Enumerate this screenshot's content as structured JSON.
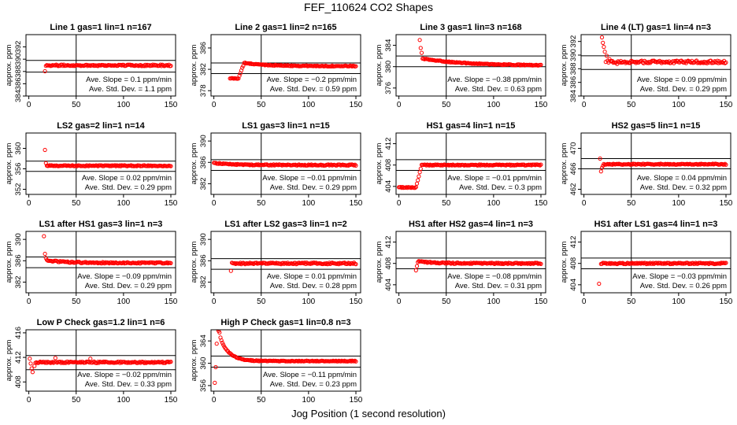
{
  "page": {
    "title": "FEF_110624  CO2 Shapes",
    "xlabel": "Jog Position (1 second resolution)"
  },
  "chart_data": [
    {
      "type": "scatter",
      "title": "Line 1 gas=1 lin=1 n=167",
      "ylabel": "approx. ppm",
      "xlim": [
        -3,
        155
      ],
      "ylim": [
        384,
        394
      ],
      "yticks": [
        384,
        386,
        388,
        390,
        392
      ],
      "xticks": [
        0,
        50,
        100,
        150
      ],
      "hlines": [
        389.8,
        387.9
      ],
      "vline": 50,
      "color": "#ff0000",
      "grid": false,
      "annotations": [
        "Ave. Slope =  0.1  ppm/min",
        "Ave. Std. Dev. =  1.1  ppm"
      ],
      "profile": {
        "start": 17,
        "initial": 383.5,
        "rise_to": 18,
        "level": 389.0,
        "overshoot": 0,
        "decay": 2,
        "noise": 0.12,
        "outliers": []
      }
    },
    {
      "type": "scatter",
      "title": "Line 2 gas=1 lin=2 n=165",
      "ylabel": "approx. ppm",
      "xlim": [
        -3,
        155
      ],
      "ylim": [
        377,
        388.5
      ],
      "yticks": [
        378,
        382,
        386
      ],
      "xticks": [
        0,
        50,
        100,
        150
      ],
      "hlines": [
        383.2,
        381.2
      ],
      "vline": 50,
      "color": "#ff0000",
      "grid": false,
      "annotations": [
        "Ave. Slope =  −0.2  ppm/min",
        "Ave. Std. Dev. =  0.59  ppm"
      ],
      "profile": {
        "start": 17,
        "initial": 380.3,
        "rise_to": 32,
        "level": 382.6,
        "overshoot": 0.6,
        "decay": 25,
        "noise": 0.08,
        "outliers": []
      }
    },
    {
      "type": "scatter",
      "title": "Line 3 gas=1 lin=3 n=168",
      "ylabel": "approx. ppm",
      "xlim": [
        -3,
        155
      ],
      "ylim": [
        374.5,
        386
      ],
      "yticks": [
        376,
        380,
        384
      ],
      "xticks": [
        0,
        50,
        100,
        150
      ],
      "hlines": [
        382.0,
        380.0
      ],
      "vline": 50,
      "color": "#ff0000",
      "grid": false,
      "annotations": [
        "Ave. Slope =  −0.38  ppm/min",
        "Ave. Std. Dev. =  0.63  ppm"
      ],
      "profile": {
        "start": 22,
        "initial": null,
        "rise_to": 22,
        "level": 380.2,
        "overshoot": 1.4,
        "decay": 45,
        "noise": 0.08,
        "outliers": [
          [
            22,
            385.0
          ],
          [
            23,
            383.5
          ],
          [
            24,
            382.6
          ]
        ]
      }
    },
    {
      "type": "scatter",
      "title": "Line 4 (LT) gas=1 lin=4 n=3",
      "ylabel": "approx. ppm",
      "xlim": [
        -3,
        155
      ],
      "ylim": [
        384,
        393
      ],
      "yticks": [
        384,
        386,
        388,
        390,
        392
      ],
      "xticks": [
        0,
        50,
        100,
        150
      ],
      "hlines": [
        389.9,
        387.9
      ],
      "vline": 50,
      "color": "#ff0000",
      "grid": false,
      "annotations": [
        "Ave. Slope =  0.09  ppm/min",
        "Ave. Std. Dev. =  0.29  ppm"
      ],
      "profile": {
        "start": 19,
        "initial": null,
        "rise_to": 19,
        "level": 389.0,
        "overshoot": 0,
        "decay": 2,
        "noise": 0.2,
        "outliers": [
          [
            19,
            392.6
          ],
          [
            20,
            391.8
          ],
          [
            21,
            391.2
          ],
          [
            22,
            390.5
          ],
          [
            24,
            389.9
          ],
          [
            27,
            389.4
          ],
          [
            35,
            388.7
          ],
          [
            40,
            388.9
          ]
        ]
      }
    },
    {
      "type": "scatter",
      "title": "LS2 gas=2 lin=1 n=14",
      "ylabel": "approx. ppm",
      "xlim": [
        -3,
        155
      ],
      "ylim": [
        351,
        363
      ],
      "yticks": [
        352,
        356,
        360
      ],
      "xticks": [
        0,
        50,
        100,
        150
      ],
      "hlines": [
        357.5,
        355.5
      ],
      "vline": 50,
      "color": "#ff0000",
      "grid": false,
      "annotations": [
        "Ave. Slope =  0.02  ppm/min",
        "Ave. Std. Dev. =  0.29  ppm"
      ],
      "profile": {
        "start": 18,
        "initial": null,
        "rise_to": 18,
        "level": 356.6,
        "overshoot": 0,
        "decay": 2,
        "noise": 0.1,
        "outliers": [
          [
            17,
            359.7
          ],
          [
            18,
            357.1
          ]
        ]
      }
    },
    {
      "type": "scatter",
      "title": "LS1 gas=3 lin=1 n=15",
      "ylabel": "approx. ppm",
      "xlim": [
        -3,
        155
      ],
      "ylim": [
        380,
        391.5
      ],
      "yticks": [
        382,
        386,
        390
      ],
      "xticks": [
        0,
        50,
        100,
        150
      ],
      "hlines": [
        386.5,
        384.5
      ],
      "vline": 50,
      "color": "#ff0000",
      "grid": false,
      "annotations": [
        "Ave. Slope =  −0.01  ppm/min",
        "Ave. Std. Dev. =  0.29  ppm"
      ],
      "profile": {
        "start": 0,
        "initial": null,
        "rise_to": 0,
        "level": 385.5,
        "overshoot": 0.4,
        "decay": 20,
        "noise": 0.1,
        "outliers": []
      }
    },
    {
      "type": "scatter",
      "title": "HS1 gas=4 lin=1 n=15",
      "ylabel": "approx. ppm",
      "xlim": [
        -3,
        155
      ],
      "ylim": [
        402.5,
        414
      ],
      "yticks": [
        404,
        408,
        412
      ],
      "xticks": [
        0,
        50,
        100,
        150
      ],
      "hlines": [
        409.0,
        407.0
      ],
      "vline": 50,
      "color": "#ff0000",
      "grid": false,
      "annotations": [
        "Ave. Slope =  −0.01  ppm/min",
        "Ave. Std. Dev. =  0.3  ppm"
      ],
      "profile": {
        "start": 0,
        "initial": 403.8,
        "rise_to": 24,
        "level": 408.0,
        "overshoot": 0,
        "decay": 2,
        "noise": 0.1,
        "outliers": []
      }
    },
    {
      "type": "scatter",
      "title": "HS2 gas=5 lin=1 n=15",
      "ylabel": "approx. ppm",
      "xlim": [
        -3,
        155
      ],
      "ylim": [
        461,
        473
      ],
      "yticks": [
        462,
        466,
        470
      ],
      "xticks": [
        0,
        50,
        100,
        150
      ],
      "hlines": [
        468.0,
        466.0
      ],
      "vline": 50,
      "color": "#ff0000",
      "grid": false,
      "annotations": [
        "Ave. Slope =  0.04  ppm/min",
        "Ave. Std. Dev. =  0.32  ppm"
      ],
      "profile": {
        "start": 18,
        "initial": null,
        "rise_to": 18,
        "level": 466.9,
        "overshoot": 0,
        "decay": 2,
        "noise": 0.1,
        "outliers": [
          [
            17,
            468.0
          ],
          [
            18,
            465.5
          ],
          [
            19,
            466.2
          ],
          [
            20,
            466.6
          ]
        ]
      }
    },
    {
      "type": "scatter",
      "title": "LS1 after HS1 gas=3 lin=1 n=3",
      "ylabel": "approx. ppm",
      "xlim": [
        -3,
        155
      ],
      "ylim": [
        380,
        391.5
      ],
      "yticks": [
        382,
        386,
        390
      ],
      "xticks": [
        0,
        50,
        100,
        150
      ],
      "hlines": [
        386.7,
        384.7
      ],
      "vline": 50,
      "color": "#ff0000",
      "grid": false,
      "annotations": [
        "Ave. Slope =  −0.09  ppm/min",
        "Ave. Std. Dev. =  0.29  ppm"
      ],
      "profile": {
        "start": 18,
        "initial": null,
        "rise_to": 18,
        "level": 385.6,
        "overshoot": 0.5,
        "decay": 20,
        "noise": 0.12,
        "outliers": [
          [
            16,
            390.6
          ],
          [
            17,
            387.3
          ],
          [
            18,
            386.5
          ]
        ]
      }
    },
    {
      "type": "scatter",
      "title": "LS1 after LS2 gas=3 lin=1 n=2",
      "ylabel": "approx. ppm",
      "xlim": [
        -3,
        155
      ],
      "ylim": [
        380,
        391.5
      ],
      "yticks": [
        382,
        386,
        390
      ],
      "xticks": [
        0,
        50,
        100,
        150
      ],
      "hlines": [
        386.4,
        384.4
      ],
      "vline": 50,
      "color": "#ff0000",
      "grid": false,
      "annotations": [
        "Ave. Slope =  0.01  ppm/min",
        "Ave. Std. Dev. =  0.28  ppm"
      ],
      "profile": {
        "start": 18,
        "initial": null,
        "rise_to": 18,
        "level": 385.5,
        "overshoot": 0,
        "decay": 2,
        "noise": 0.15,
        "outliers": [
          [
            18,
            384.1
          ]
        ]
      }
    },
    {
      "type": "scatter",
      "title": "HS1 after HS2 gas=4 lin=1 n=3",
      "ylabel": "approx. ppm",
      "xlim": [
        -3,
        155
      ],
      "ylim": [
        402.5,
        414
      ],
      "yticks": [
        404,
        408,
        412
      ],
      "xticks": [
        0,
        50,
        100,
        150
      ],
      "hlines": [
        409.0,
        407.0
      ],
      "vline": 50,
      "color": "#ff0000",
      "grid": false,
      "annotations": [
        "Ave. Slope =  −0.08  ppm/min",
        "Ave. Std. Dev. =  0.31  ppm"
      ],
      "profile": {
        "start": 18,
        "initial": null,
        "rise_to": 18,
        "level": 408.0,
        "overshoot": 0.4,
        "decay": 20,
        "noise": 0.12,
        "outliers": [
          [
            18,
            406.7
          ],
          [
            19,
            407.5
          ]
        ]
      }
    },
    {
      "type": "scatter",
      "title": "HS1 after LS1 gas=4 lin=1 n=3",
      "ylabel": "approx. ppm",
      "xlim": [
        -3,
        155
      ],
      "ylim": [
        402.5,
        414
      ],
      "yticks": [
        404,
        408,
        412
      ],
      "xticks": [
        0,
        50,
        100,
        150
      ],
      "hlines": [
        409.0,
        407.0
      ],
      "vline": 50,
      "color": "#ff0000",
      "grid": false,
      "annotations": [
        "Ave. Slope =  −0.03  ppm/min",
        "Ave. Std. Dev. =  0.26  ppm"
      ],
      "profile": {
        "start": 18,
        "initial": null,
        "rise_to": 18,
        "level": 408.0,
        "overshoot": 0,
        "decay": 2,
        "noise": 0.12,
        "outliers": [
          [
            16,
            404.2
          ]
        ]
      }
    },
    {
      "type": "scatter",
      "title": "Low P Check gas=1.2 lin=1 n=6",
      "ylabel": "approx. ppm",
      "xlim": [
        -3,
        155
      ],
      "ylim": [
        406.5,
        416.5
      ],
      "yticks": [
        408,
        412,
        416
      ],
      "xticks": [
        0,
        50,
        100,
        150
      ],
      "hlines": [
        412.3,
        410.0
      ],
      "vline": 50,
      "color": "#ff0000",
      "grid": false,
      "annotations": [
        "Ave. Slope =  −0.02  ppm/min",
        "Ave. Std. Dev. =  0.33  ppm"
      ],
      "profile": {
        "start": 6,
        "initial": null,
        "rise_to": 6,
        "level": 411.2,
        "overshoot": 0,
        "decay": 2,
        "noise": 0.12,
        "outliers": [
          [
            1,
            411.8
          ],
          [
            2,
            411.0
          ],
          [
            3,
            410.2
          ],
          [
            4,
            409.6
          ],
          [
            6,
            410.6
          ],
          [
            28,
            411.9
          ],
          [
            65,
            411.8
          ]
        ]
      }
    },
    {
      "type": "scatter",
      "title": "High P Check gas=1 lin=0.8 n=3",
      "ylabel": "approx. ppm",
      "xlim": [
        -3,
        155
      ],
      "ylim": [
        355,
        366
      ],
      "yticks": [
        356,
        360,
        364
      ],
      "xticks": [
        0,
        50,
        100,
        150
      ],
      "hlines": [
        361.3,
        359.3
      ],
      "vline": 50,
      "color": "#ff0000",
      "grid": false,
      "annotations": [
        "Ave. Slope =  −0.11  ppm/min",
        "Ave. Std. Dev. =  0.23  ppm"
      ],
      "profile": {
        "start": 4,
        "initial": null,
        "rise_to": 4,
        "level": 360.4,
        "overshoot": 5.8,
        "decay": 9,
        "noise": 0.08,
        "outliers": [
          [
            1,
            356.5
          ],
          [
            2,
            359.3
          ],
          [
            3,
            363.5
          ],
          [
            5,
            365.8
          ],
          [
            6,
            365.5
          ]
        ]
      }
    }
  ]
}
